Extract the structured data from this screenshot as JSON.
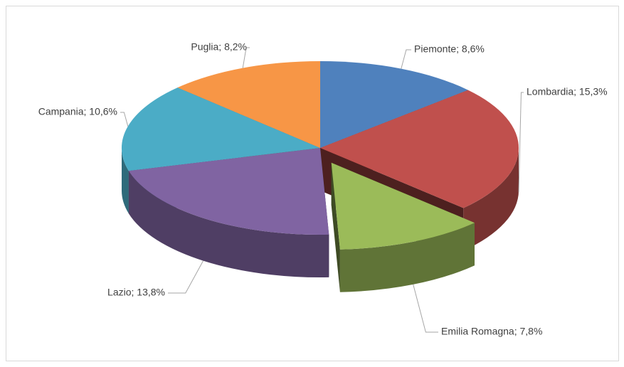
{
  "chart_data": {
    "type": "pie3d",
    "categories": [
      "Piemonte",
      "Lombardia",
      "Emilia Romagna",
      "Lazio",
      "Campania",
      "Puglia"
    ],
    "values": [
      8.6,
      15.3,
      7.8,
      13.8,
      10.6,
      8.2
    ],
    "value_labels": [
      "Piemonte; 8,6%",
      "Lombardia; 15,3%",
      "Emilia Romagna; 7,8%",
      "Lazio; 13,8%",
      "Campania; 10,6%",
      "Puglia; 8,2%"
    ],
    "colors": [
      "#4f81bd",
      "#c0504d",
      "#9bbb59",
      "#8064a2",
      "#4bacc6",
      "#f79646"
    ],
    "exploded": "Emilia Romagna"
  }
}
